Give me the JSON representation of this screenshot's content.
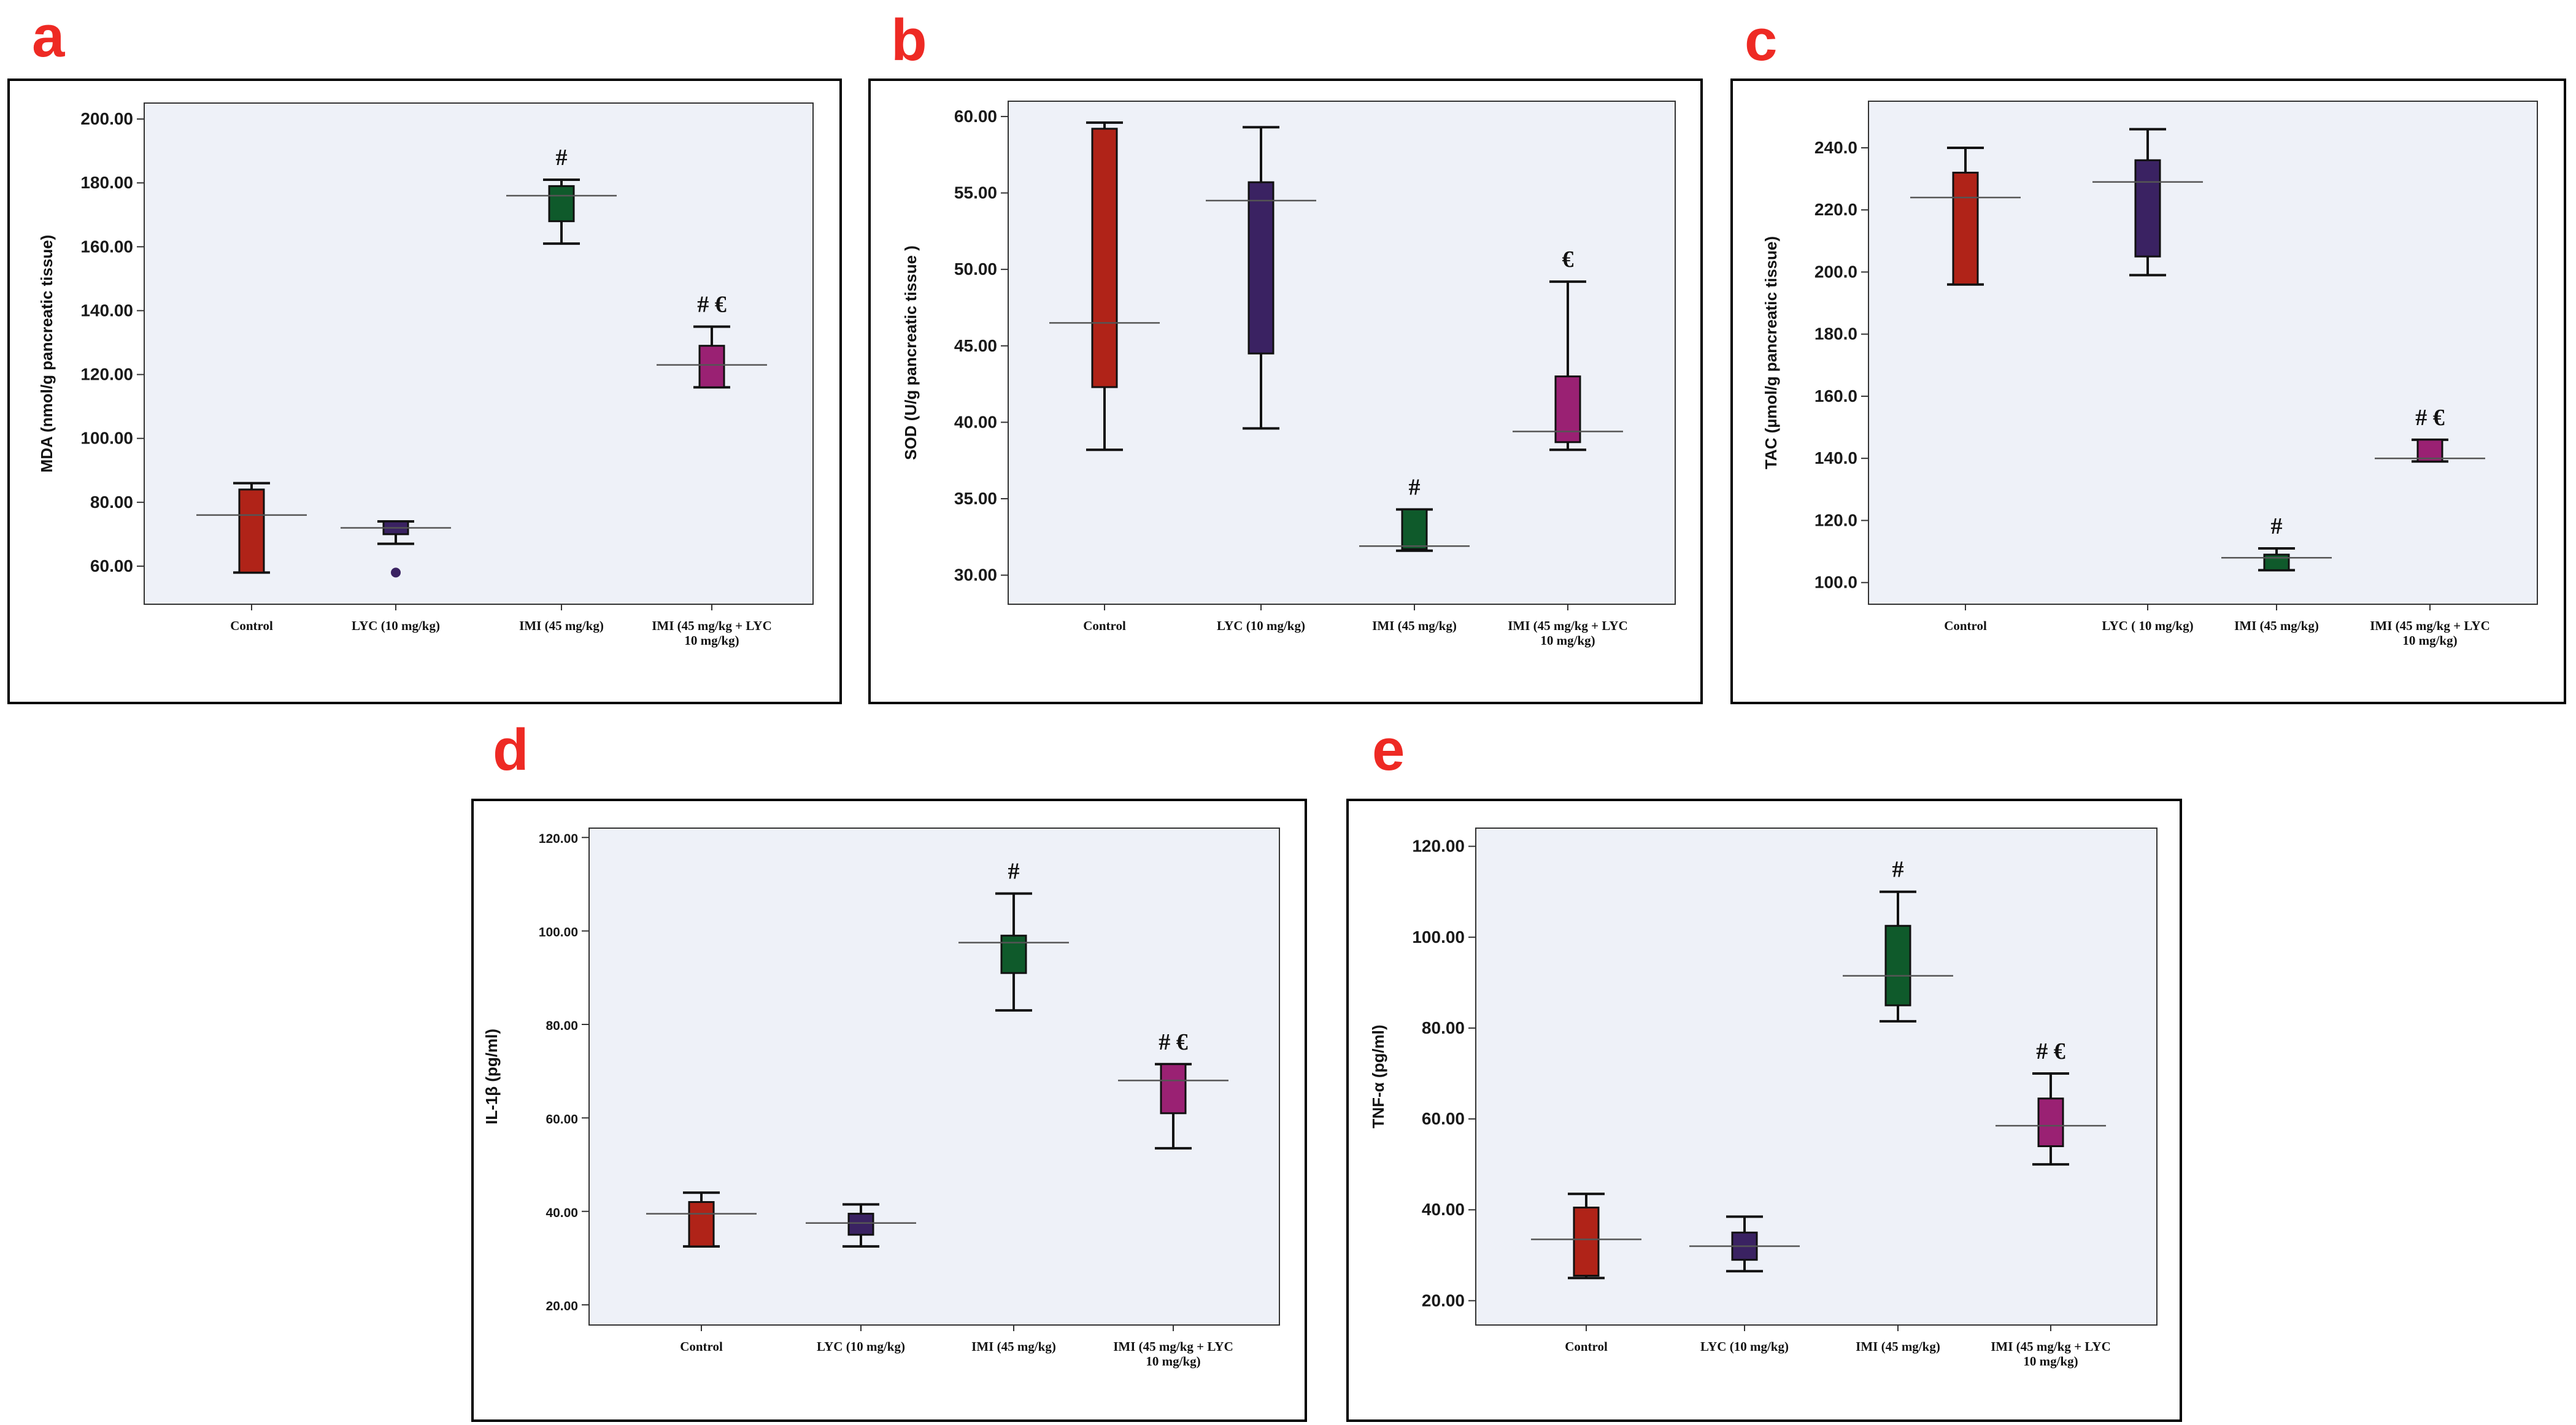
{
  "colors": {
    "control": "#b02318",
    "lyc": "#3a2262",
    "imi": "#0f5a2b",
    "combo": "#9a2173",
    "panel_letter": "#ee2a24",
    "plot_background": "#eef1f8"
  },
  "chart_data": [
    {
      "id": "a",
      "panel_label": "a",
      "type": "box",
      "ylabel": "MDA (nmol/g pancreatic tissue)",
      "ylim": [
        50,
        205
      ],
      "ticks": [
        60,
        80,
        100,
        120,
        140,
        160,
        180,
        200
      ],
      "tick_labels": [
        "60.00",
        "80.00",
        "100.00",
        "120.00",
        "140.00",
        "160.00",
        "180.00",
        "200.00"
      ],
      "categories": [
        {
          "label_lines": [
            "Control"
          ],
          "color_key": "control",
          "whisker_low": 58,
          "q1": 58,
          "median": 58,
          "q3": 84,
          "whisker_high": 86,
          "mean": 76,
          "outliers": [],
          "annotation": ""
        },
        {
          "label_lines": [
            "LYC (10 mg/kg)"
          ],
          "color_key": "lyc",
          "whisker_low": 67,
          "q1": 70,
          "median": 70,
          "q3": 74,
          "whisker_high": 74,
          "mean": 72,
          "outliers": [
            58
          ],
          "annotation": ""
        },
        {
          "label_lines": [
            "IMI (45 mg/kg)"
          ],
          "color_key": "imi",
          "whisker_low": 161,
          "q1": 168,
          "median": 168,
          "q3": 179,
          "whisker_high": 181,
          "mean": 176,
          "outliers": [],
          "annotation": "#"
        },
        {
          "label_lines": [
            "IMI (45 mg/kg + LYC",
            "10 mg/kg)"
          ],
          "color_key": "combo",
          "whisker_low": 116,
          "q1": 116,
          "median": 116,
          "q3": 129,
          "whisker_high": 135,
          "mean": 123,
          "outliers": [],
          "annotation": "# €"
        }
      ]
    },
    {
      "id": "b",
      "panel_label": "b",
      "type": "box",
      "ylabel": "SOD (U/g pancreatic tissue )",
      "ylim": [
        28.5,
        61
      ],
      "ticks": [
        30,
        35,
        40,
        45,
        50,
        55,
        60
      ],
      "tick_labels": [
        "30.00",
        "35.00",
        "40.00",
        "45.00",
        "50.00",
        "55.00",
        "60.00"
      ],
      "categories": [
        {
          "label_lines": [
            "Control"
          ],
          "color_key": "control",
          "whisker_low": 38.2,
          "q1": 42.3,
          "median": 42.3,
          "q3": 59.2,
          "whisker_high": 59.6,
          "mean": 46.5,
          "outliers": [],
          "annotation": ""
        },
        {
          "label_lines": [
            "LYC (10 mg/kg)"
          ],
          "color_key": "lyc",
          "whisker_low": 39.6,
          "q1": 44.5,
          "median": 44.5,
          "q3": 55.7,
          "whisker_high": 59.3,
          "mean": 54.5,
          "outliers": [],
          "annotation": ""
        },
        {
          "label_lines": [
            "IMI (45 mg/kg)"
          ],
          "color_key": "imi",
          "whisker_low": 31.6,
          "q1": 31.7,
          "median": 31.7,
          "q3": 34.3,
          "whisker_high": 34.3,
          "mean": 31.9,
          "outliers": [],
          "annotation": "#"
        },
        {
          "label_lines": [
            "IMI (45 mg/kg + LYC",
            "10 mg/kg)"
          ],
          "color_key": "combo",
          "whisker_low": 38.2,
          "q1": 38.7,
          "median": 38.7,
          "q3": 43.0,
          "whisker_high": 49.2,
          "mean": 39.4,
          "outliers": [],
          "annotation": "€"
        }
      ]
    },
    {
      "id": "c",
      "panel_label": "c",
      "type": "box",
      "ylabel": "TAC (µmol/g pancreatic tissue)",
      "ylim": [
        95,
        255
      ],
      "ticks": [
        100,
        120,
        140,
        160,
        180,
        200,
        220,
        240
      ],
      "tick_labels": [
        "100.0",
        "120.0",
        "140.0",
        "160.0",
        "180.0",
        "200.0",
        "220.0",
        "240.0"
      ],
      "categories": [
        {
          "label_lines": [
            "Control"
          ],
          "color_key": "control",
          "whisker_low": 196,
          "q1": 196,
          "median": 196,
          "q3": 232,
          "whisker_high": 240,
          "mean": 224,
          "outliers": [],
          "annotation": ""
        },
        {
          "label_lines": [
            "LYC ( 10 mg/kg)"
          ],
          "color_key": "lyc",
          "whisker_low": 199,
          "q1": 205,
          "median": 205,
          "q3": 236,
          "whisker_high": 246,
          "mean": 229,
          "outliers": [],
          "annotation": ""
        },
        {
          "label_lines": [
            "IMI (45 mg/kg)"
          ],
          "color_key": "imi",
          "whisker_low": 104,
          "q1": 104,
          "median": 104,
          "q3": 109,
          "whisker_high": 111,
          "mean": 108,
          "outliers": [],
          "annotation": "#"
        },
        {
          "label_lines": [
            "IMI (45 mg/kg + LYC",
            "10 mg/kg)"
          ],
          "color_key": "combo",
          "whisker_low": 139,
          "q1": 139,
          "median": 139,
          "q3": 146,
          "whisker_high": 146,
          "mean": 140,
          "outliers": [],
          "annotation": "# €"
        }
      ]
    },
    {
      "id": "d",
      "panel_label": "d",
      "type": "box",
      "ylabel": "IL-1β (pg/ml)",
      "ylim": [
        17,
        122
      ],
      "ticks": [
        20,
        40,
        60,
        80,
        100,
        120
      ],
      "tick_labels": [
        "20.00",
        "40.00",
        "60.00",
        "80.00",
        "100.00",
        "120.00"
      ],
      "categories": [
        {
          "label_lines": [
            "Control"
          ],
          "color_key": "control",
          "whisker_low": 32.5,
          "q1": 32.5,
          "median": 32.5,
          "q3": 42,
          "whisker_high": 44,
          "mean": 39.5,
          "outliers": [],
          "annotation": ""
        },
        {
          "label_lines": [
            "LYC (10 mg/kg)"
          ],
          "color_key": "lyc",
          "whisker_low": 32.5,
          "q1": 35,
          "median": 35,
          "q3": 39.5,
          "whisker_high": 41.5,
          "mean": 37.5,
          "outliers": [],
          "annotation": ""
        },
        {
          "label_lines": [
            "IMI (45 mg/kg)"
          ],
          "color_key": "imi",
          "whisker_low": 83,
          "q1": 91,
          "median": 91,
          "q3": 99,
          "whisker_high": 108,
          "mean": 97.5,
          "outliers": [],
          "annotation": "#"
        },
        {
          "label_lines": [
            "IMI (45 mg/kg + LYC",
            "10 mg/kg)"
          ],
          "color_key": "combo",
          "whisker_low": 53.5,
          "q1": 61,
          "median": 61,
          "q3": 71.5,
          "whisker_high": 71.5,
          "mean": 68,
          "outliers": [],
          "annotation": "# €"
        }
      ]
    },
    {
      "id": "e",
      "panel_label": "e",
      "type": "box",
      "ylabel": "TNF-α (pg/ml)",
      "ylim": [
        16,
        124
      ],
      "ticks": [
        20,
        40,
        60,
        80,
        100,
        120
      ],
      "tick_labels": [
        "20.00",
        "40.00",
        "60.00",
        "80.00",
        "100.00",
        "120.00"
      ],
      "categories": [
        {
          "label_lines": [
            "Control"
          ],
          "color_key": "control",
          "whisker_low": 25,
          "q1": 25.5,
          "median": 25.5,
          "q3": 40.5,
          "whisker_high": 43.5,
          "mean": 33.5,
          "outliers": [],
          "annotation": ""
        },
        {
          "label_lines": [
            "LYC (10 mg/kg)"
          ],
          "color_key": "lyc",
          "whisker_low": 26.5,
          "q1": 29,
          "median": 29,
          "q3": 35,
          "whisker_high": 38.5,
          "mean": 32,
          "outliers": [],
          "annotation": ""
        },
        {
          "label_lines": [
            "IMI (45 mg/kg)"
          ],
          "color_key": "imi",
          "whisker_low": 81.5,
          "q1": 85,
          "median": 85,
          "q3": 102.5,
          "whisker_high": 110,
          "mean": 91.5,
          "outliers": [],
          "annotation": "#"
        },
        {
          "label_lines": [
            "IMI (45 mg/kg + LYC",
            "10 mg/kg)"
          ],
          "color_key": "combo",
          "whisker_low": 50,
          "q1": 54,
          "median": 54,
          "q3": 64.5,
          "whisker_high": 70,
          "mean": 58.5,
          "outliers": [],
          "annotation": "# €"
        }
      ]
    }
  ]
}
